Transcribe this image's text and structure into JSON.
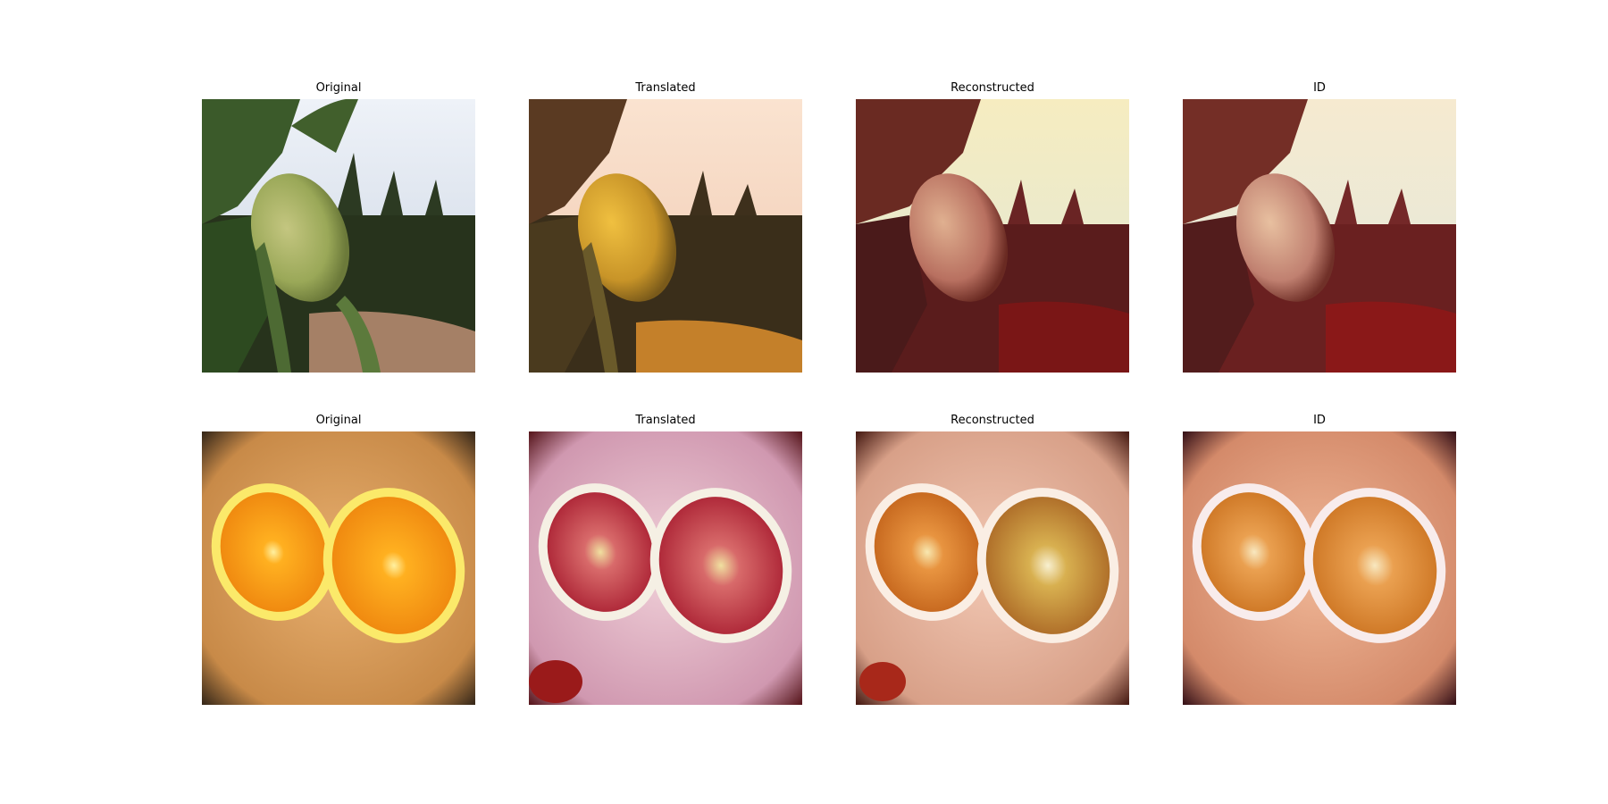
{
  "figure": {
    "rows": [
      {
        "subject": "green apple on branch with orchard and sky",
        "panels": [
          {
            "title": "Original",
            "image": "apple-original"
          },
          {
            "title": "Translated",
            "image": "apple-translated"
          },
          {
            "title": "Reconstructed",
            "image": "apple-reconstructed"
          },
          {
            "title": "ID",
            "image": "apple-id"
          }
        ]
      },
      {
        "subject": "two orange halves on wooden board",
        "panels": [
          {
            "title": "Original",
            "image": "orange-original"
          },
          {
            "title": "Translated",
            "image": "orange-translated"
          },
          {
            "title": "Reconstructed",
            "image": "orange-reconstructed"
          },
          {
            "title": "ID",
            "image": "orange-id"
          }
        ]
      }
    ]
  },
  "palette": {
    "background": "#ffffff",
    "apple_original": {
      "sky": "#dfe6f0",
      "foliage": "#2e3a22",
      "fruit": "#a8b060",
      "ground": "#b08a6a"
    },
    "apple_translated": {
      "sky": "#f5d8c0",
      "foliage": "#4a3a20",
      "fruit": "#d6a030",
      "ground": "#c88a30"
    },
    "apple_reconstructed": {
      "sky": "#f3e6b0",
      "foliage": "#5a2020",
      "fruit": "#c07a60",
      "ground": "#7a1a1a"
    },
    "apple_id": {
      "sky": "#f3e6c0",
      "foliage": "#6a2424",
      "fruit": "#c88a70",
      "ground": "#8a1a1a"
    },
    "orange_original": {
      "board": "#d79a5a",
      "flesh": "#f5a014",
      "rind": "#fbe96a"
    },
    "orange_translated": {
      "board": "#e6b6c6",
      "flesh": "#c03a4a",
      "rind": "#f0f0e0"
    },
    "orange_reconstructed": {
      "board": "#e8b09a",
      "flesh": "#e07a20",
      "rind": "#f8e8d8"
    },
    "orange_id": {
      "board": "#e49a7a",
      "flesh": "#e88a2a",
      "rind": "#f5e8e8"
    }
  }
}
